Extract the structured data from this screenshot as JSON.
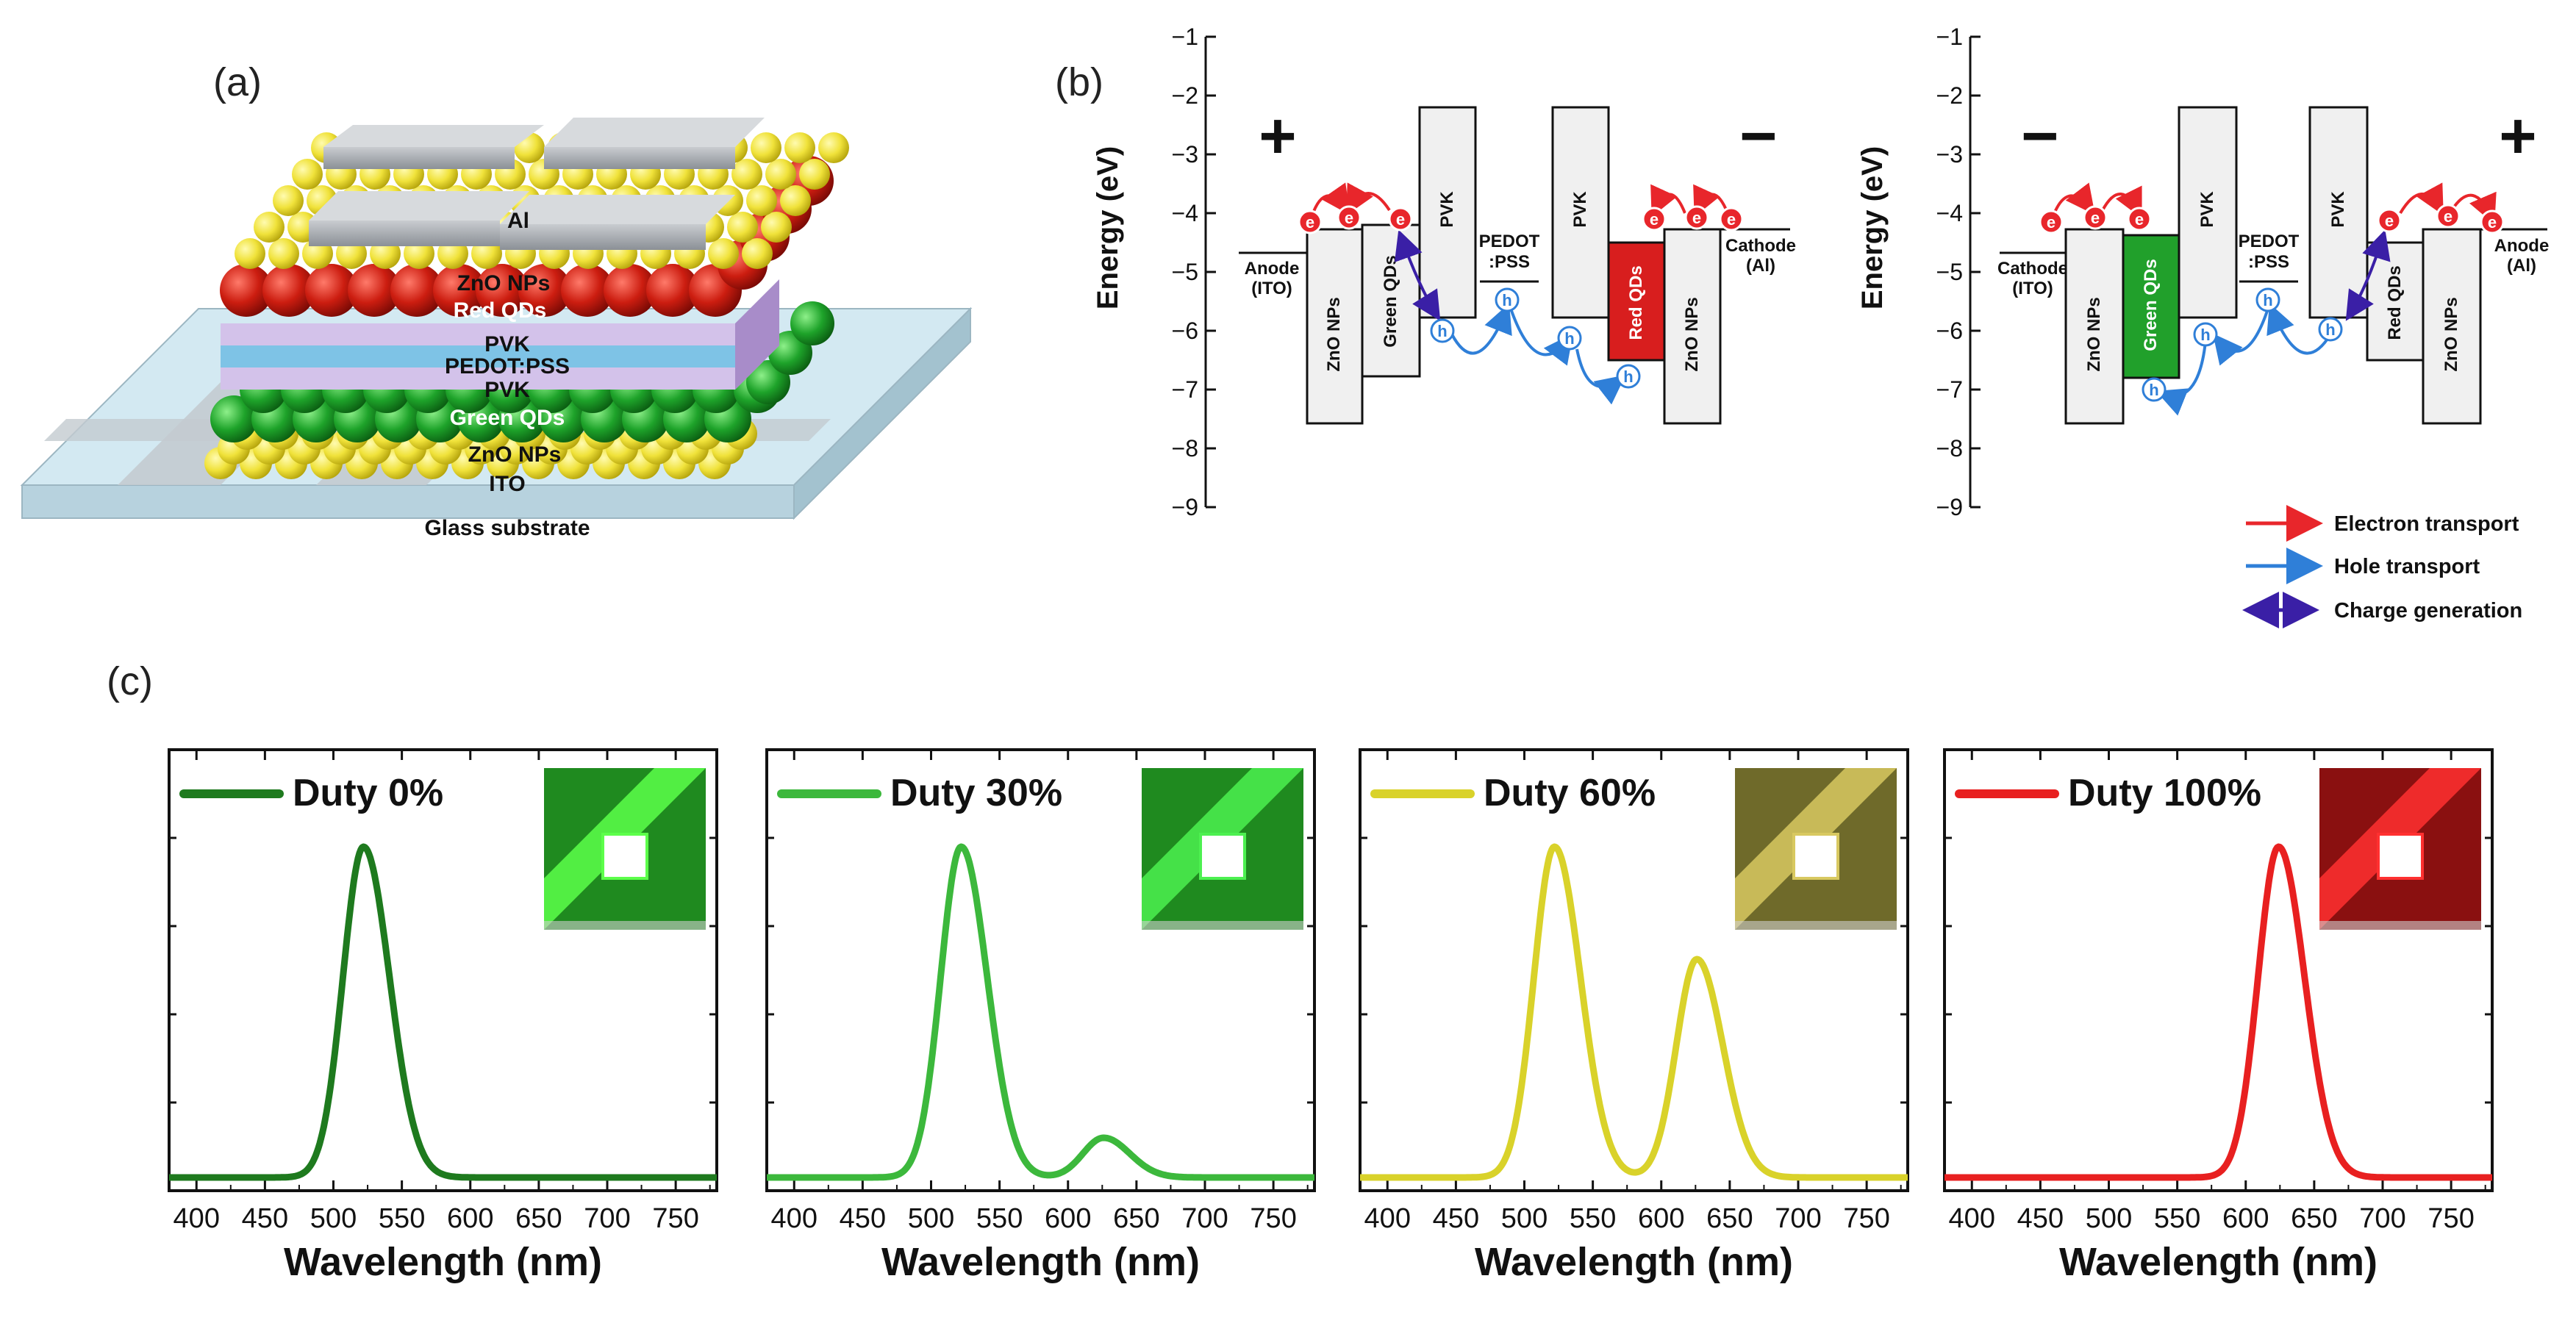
{
  "panel_labels": {
    "a": "(a)",
    "b": "(b)",
    "c": "(c)"
  },
  "device_stack": {
    "layers": [
      "Al",
      "ZnO NPs",
      "Red QDs",
      "PVK",
      "PEDOT:PSS",
      "PVK",
      "Green QDs",
      "ZnO NPs",
      "ITO",
      "Glass substrate"
    ]
  },
  "energy_diagram": {
    "ylabel": "Energy (eV)",
    "yticks": [
      "−1",
      "−2",
      "−3",
      "−4",
      "−5",
      "−6",
      "−7",
      "−8",
      "−9"
    ],
    "left": {
      "polarity_left": "+",
      "polarity_right": "−",
      "electrode_left": [
        "Anode",
        "(ITO)"
      ],
      "electrode_right": [
        "Cathode",
        "(Al)"
      ],
      "pedot": [
        "PEDOT",
        ":PSS"
      ],
      "boxes": [
        "ZnO NPs",
        "Green QDs",
        "PVK",
        "PVK",
        "Red QDs",
        "ZnO NPs"
      ]
    },
    "right": {
      "polarity_left": "−",
      "polarity_right": "+",
      "electrode_left": [
        "Cathode",
        "(ITO)"
      ],
      "electrode_right": [
        "Anode",
        "(Al)"
      ],
      "pedot": [
        "PEDOT",
        ":PSS"
      ],
      "boxes": [
        "ZnO NPs",
        "Green QDs",
        "PVK",
        "PVK",
        "Red QDs",
        "ZnO NPs"
      ]
    },
    "carrier_symbols": {
      "electron": "e",
      "hole": "h"
    },
    "legend": [
      "Electron transport",
      "Hole transport",
      "Charge generation"
    ],
    "colors": {
      "electron": "#e8262b",
      "hole": "#2f7fd8",
      "generation": "#3a1fa6",
      "red_qd": "#d81e1e",
      "green_qd": "#21a02b"
    }
  },
  "chart_data": [
    {
      "type": "line",
      "title": "Duty 0%",
      "xlabel": "Wavelength (nm)",
      "xlim": [
        380,
        780
      ],
      "ylim": [
        0,
        1
      ],
      "xticks": [
        "400",
        "450",
        "500",
        "550",
        "600",
        "650",
        "700",
        "750"
      ],
      "color": "#1e7a1e",
      "series": [
        {
          "name": "Duty 0%",
          "peaks": [
            {
              "center": 522,
              "height": 1.0
            }
          ]
        }
      ]
    },
    {
      "type": "line",
      "title": "Duty 30%",
      "xlabel": "Wavelength (nm)",
      "xlim": [
        380,
        780
      ],
      "ylim": [
        0,
        1
      ],
      "xticks": [
        "400",
        "450",
        "500",
        "550",
        "600",
        "650",
        "700",
        "750"
      ],
      "color": "#3cb83c",
      "series": [
        {
          "name": "Duty 30%",
          "peaks": [
            {
              "center": 522,
              "height": 1.0
            },
            {
              "center": 626,
              "height": 0.12
            }
          ]
        }
      ]
    },
    {
      "type": "line",
      "title": "Duty 60%",
      "xlabel": "Wavelength (nm)",
      "xlim": [
        380,
        780
      ],
      "ylim": [
        0,
        1
      ],
      "xticks": [
        "400",
        "450",
        "500",
        "550",
        "600",
        "650",
        "700",
        "750"
      ],
      "color": "#d9d22a",
      "series": [
        {
          "name": "Duty 60%",
          "peaks": [
            {
              "center": 522,
              "height": 1.0
            },
            {
              "center": 626,
              "height": 0.66
            }
          ]
        }
      ]
    },
    {
      "type": "line",
      "title": "Duty 100%",
      "xlabel": "Wavelength (nm)",
      "xlim": [
        380,
        780
      ],
      "ylim": [
        0,
        1
      ],
      "xticks": [
        "400",
        "450",
        "500",
        "550",
        "600",
        "650",
        "700",
        "750"
      ],
      "color": "#e82020",
      "series": [
        {
          "name": "Duty 100%",
          "peaks": [
            {
              "center": 624,
              "height": 1.0
            }
          ]
        }
      ]
    }
  ]
}
